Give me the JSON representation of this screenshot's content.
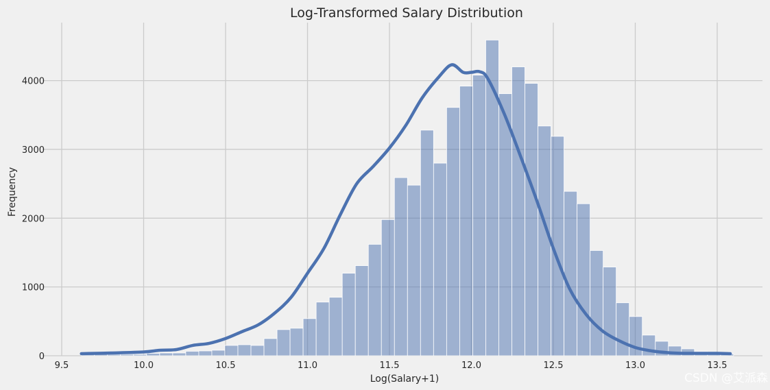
{
  "chart_data": {
    "type": "bar",
    "subtype": "histogram-with-kde",
    "title": "Log-Transformed Salary Distribution",
    "xlabel": "Log(Salary+1)",
    "ylabel": "Frequency",
    "xlim": [
      9.5,
      13.6
    ],
    "ylim": [
      0,
      4800
    ],
    "xticks": [
      "9.5",
      "10.0",
      "10.5",
      "11.0",
      "11.5",
      "12.0",
      "12.5",
      "13.0",
      "13.5"
    ],
    "yticks": [
      "0",
      "1000",
      "2000",
      "3000",
      "4000"
    ],
    "grid": true,
    "bar_color": "#4c72b0",
    "line_color": "#4c72b0",
    "bins": {
      "start": 9.62,
      "width": 0.0796,
      "counts": [
        20,
        25,
        20,
        20,
        20,
        35,
        40,
        40,
        65,
        70,
        80,
        150,
        160,
        150,
        250,
        380,
        400,
        540,
        780,
        850,
        1200,
        1310,
        1620,
        1980,
        2590,
        2480,
        3280,
        2800,
        3610,
        3920,
        4080,
        4590,
        3810,
        4200,
        3960,
        3340,
        3190,
        2390,
        2210,
        1530,
        1290,
        770,
        570,
        300,
        210,
        140,
        100,
        60,
        40,
        25
      ]
    },
    "kde": {
      "x": [
        9.62,
        9.8,
        10.0,
        10.1,
        10.2,
        10.3,
        10.4,
        10.5,
        10.6,
        10.7,
        10.8,
        10.9,
        11.0,
        11.1,
        11.2,
        11.3,
        11.4,
        11.5,
        11.6,
        11.7,
        11.8,
        11.88,
        11.95,
        12.0,
        12.05,
        12.1,
        12.2,
        12.3,
        12.4,
        12.5,
        12.6,
        12.7,
        12.8,
        12.9,
        13.0,
        13.1,
        13.2,
        13.3,
        13.4,
        13.5,
        13.58
      ],
      "y": [
        30,
        40,
        55,
        80,
        90,
        150,
        180,
        250,
        350,
        450,
        620,
        850,
        1200,
        1560,
        2050,
        2500,
        2750,
        3020,
        3350,
        3750,
        4050,
        4230,
        4120,
        4120,
        4130,
        4030,
        3520,
        2900,
        2250,
        1560,
        970,
        600,
        360,
        220,
        120,
        70,
        45,
        35,
        35,
        35,
        30
      ]
    },
    "watermark": "CSDN @艾派森"
  }
}
